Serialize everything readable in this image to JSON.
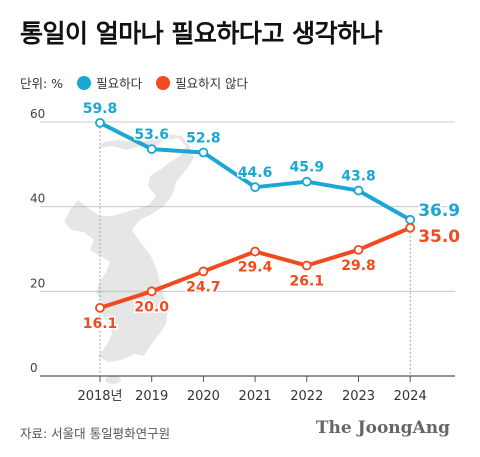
{
  "header": {
    "title": "통일이 얼마나 필요하다고 생각하나"
  },
  "legend": {
    "unit": "단위: %"
  },
  "footer": {
    "source": "자료: 서울대 통일평화연구원",
    "brand": "The JoongAng"
  },
  "colors": {
    "needed": "#1AA7D3",
    "not_needed": "#F04A1E",
    "grid": "#bdbdbd",
    "map": "#e6e6e6"
  },
  "chart_data": {
    "type": "line",
    "categories": [
      "2018년",
      "2019",
      "2020",
      "2021",
      "2022",
      "2023",
      "2024"
    ],
    "series": [
      {
        "name": "필요하다",
        "values": [
          59.8,
          53.6,
          52.8,
          44.6,
          45.9,
          43.8,
          36.9
        ]
      },
      {
        "name": "필요하지 않다",
        "values": [
          16.1,
          20.0,
          24.7,
          29.4,
          26.1,
          29.8,
          35.0
        ]
      }
    ],
    "value_labels": [
      [
        "59.8",
        "53.6",
        "52.8",
        "44.6",
        "45.9",
        "43.8",
        "36.9"
      ],
      [
        "16.1",
        "20.0",
        "24.7",
        "29.4",
        "26.1",
        "29.8",
        "35.0"
      ]
    ],
    "y_ticks": [
      0,
      20,
      40,
      60
    ],
    "y_tick_labels": [
      "0",
      "20",
      "40",
      "60"
    ],
    "ylim": [
      0,
      60
    ],
    "grid": true,
    "legend_position": "top-left",
    "background": "korean-peninsula-map"
  }
}
